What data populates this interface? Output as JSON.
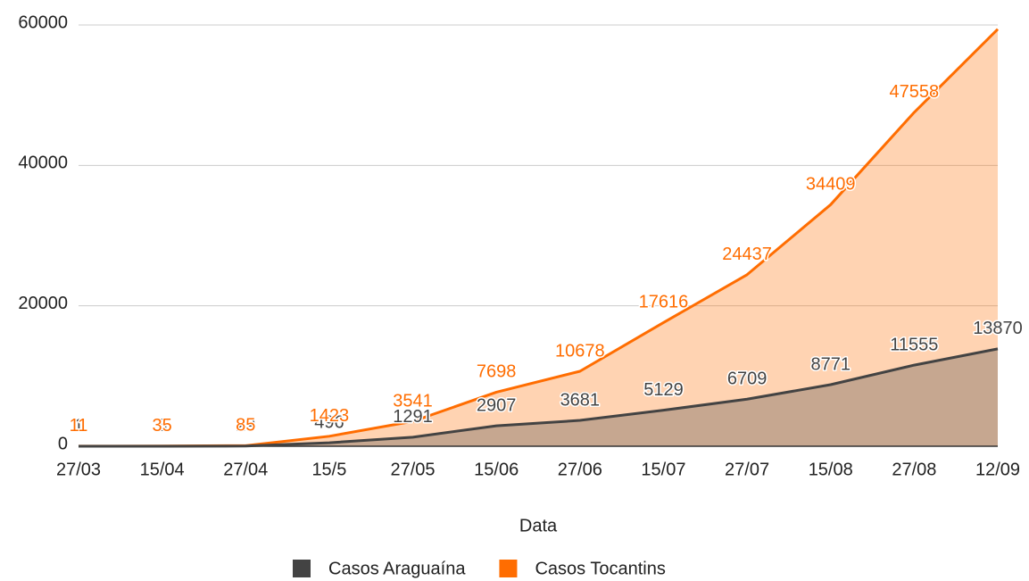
{
  "chart_data": {
    "type": "area",
    "x_label": "Data",
    "categories": [
      "27/03",
      "15/04",
      "27/04",
      "15/5",
      "27/05",
      "15/06",
      "27/06",
      "15/07",
      "27/07",
      "15/08",
      "27/08",
      "12/09"
    ],
    "series": [
      {
        "name": "Casos Araguaína",
        "color": "#434343",
        "values": [
          1,
          5,
          29,
          496,
          1291,
          2907,
          3681,
          5129,
          6709,
          8771,
          11555,
          13870
        ],
        "value_labels": [
          "1",
          "5",
          "29",
          "496",
          "1291",
          "2907",
          "3681",
          "5129",
          "6709",
          "8771",
          "11555",
          "13870"
        ]
      },
      {
        "name": "Casos Tocantins",
        "color": "#ff6d01",
        "values": [
          11,
          35,
          85,
          1423,
          3541,
          7698,
          10678,
          17616,
          24437,
          34409,
          47558,
          59400
        ],
        "value_labels": [
          "11",
          "35",
          "85",
          "1423",
          "3541",
          "7698",
          "10678",
          "17616",
          "24437",
          "34409",
          "47558",
          null
        ]
      }
    ],
    "ylim": [
      0,
      60000
    ],
    "yticks": [
      0,
      20000,
      40000,
      60000
    ],
    "grid": true,
    "legend": "bottom"
  }
}
